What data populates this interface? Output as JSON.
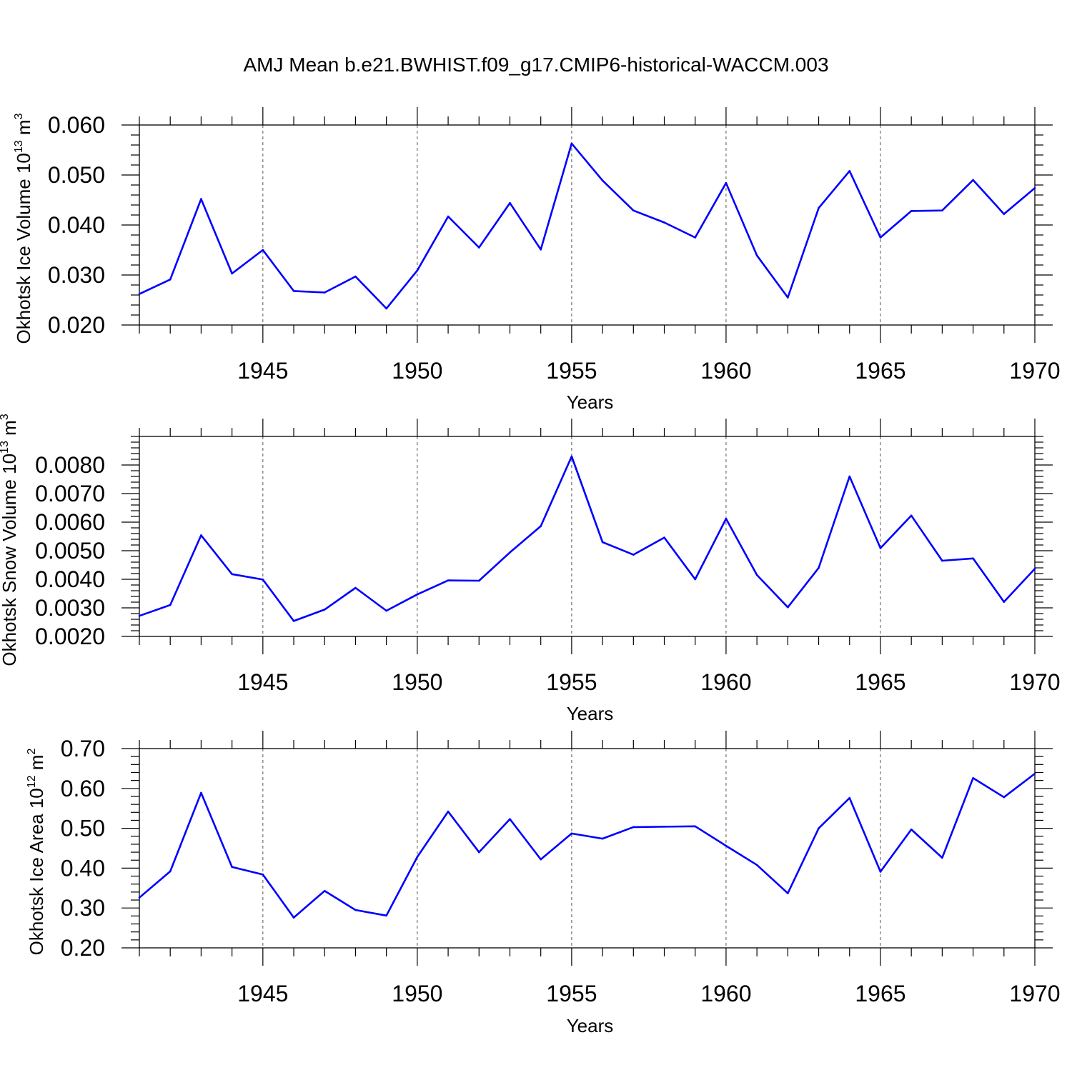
{
  "title": "AMJ Mean b.e21.BWHIST.f09_g17.CMIP6-historical-WACCM.003",
  "colors": {
    "line": "#0000ff",
    "grid": "#555555",
    "axis": "#000000"
  },
  "chart_data": [
    {
      "type": "line",
      "ylabel_main": "Okhotsk Ice Volume 10",
      "ylabel_exp": "13",
      "ylabel_unit": " m",
      "ylabel_unit_exp": "3",
      "xlabel": "Years",
      "xlim": [
        1941,
        1970
      ],
      "ylim": [
        0.02,
        0.06
      ],
      "yticks": [
        0.02,
        0.03,
        0.04,
        0.05,
        0.06
      ],
      "ytick_labels": [
        "0.020",
        "0.030",
        "0.040",
        "0.050",
        "0.060"
      ],
      "xticks": [
        1945,
        1950,
        1955,
        1960,
        1965,
        1970
      ],
      "xtick_labels": [
        "1945",
        "1950",
        "1955",
        "1960",
        "1965",
        "1970"
      ],
      "grid_x": [
        1945,
        1950,
        1955,
        1960,
        1965
      ],
      "x": [
        1941,
        1942,
        1943,
        1944,
        1945,
        1946,
        1947,
        1948,
        1949,
        1950,
        1951,
        1952,
        1953,
        1954,
        1955,
        1956,
        1957,
        1958,
        1959,
        1960,
        1961,
        1962,
        1963,
        1964,
        1965,
        1966,
        1967,
        1968,
        1969,
        1970
      ],
      "series": [
        {
          "name": "Okhotsk Ice Volume",
          "values": [
            0.0262,
            0.0291,
            0.0452,
            0.0303,
            0.035,
            0.0268,
            0.0265,
            0.0297,
            0.0233,
            0.0309,
            0.0417,
            0.0355,
            0.0444,
            0.0351,
            0.0563,
            0.0489,
            0.0429,
            0.0405,
            0.0375,
            0.0484,
            0.0339,
            0.0255,
            0.0434,
            0.0508,
            0.0375,
            0.0428,
            0.0429,
            0.049,
            0.0422,
            0.0474
          ]
        }
      ]
    },
    {
      "type": "line",
      "ylabel_main": "Okhotsk Snow Volume 10",
      "ylabel_exp": "13",
      "ylabel_unit": " m",
      "ylabel_unit_exp": "3",
      "xlabel": "Years",
      "xlim": [
        1941,
        1970
      ],
      "ylim": [
        0.002,
        0.009
      ],
      "yticks": [
        0.002,
        0.003,
        0.004,
        0.005,
        0.006,
        0.007,
        0.008
      ],
      "ytick_labels": [
        "0.0020",
        "0.0030",
        "0.0040",
        "0.0050",
        "0.0060",
        "0.0070",
        "0.0080"
      ],
      "xticks": [
        1945,
        1950,
        1955,
        1960,
        1965,
        1970
      ],
      "xtick_labels": [
        "1945",
        "1950",
        "1955",
        "1960",
        "1965",
        "1970"
      ],
      "grid_x": [
        1945,
        1950,
        1955,
        1960,
        1965
      ],
      "x": [
        1941,
        1942,
        1943,
        1944,
        1945,
        1946,
        1947,
        1948,
        1949,
        1950,
        1951,
        1952,
        1953,
        1954,
        1955,
        1956,
        1957,
        1958,
        1959,
        1960,
        1961,
        1962,
        1963,
        1964,
        1965,
        1966,
        1967,
        1968,
        1969,
        1970
      ],
      "series": [
        {
          "name": "Okhotsk Snow Volume",
          "values": [
            0.00272,
            0.0031,
            0.00554,
            0.00418,
            0.00399,
            0.00254,
            0.00294,
            0.0037,
            0.0029,
            0.00347,
            0.00396,
            0.00395,
            0.00494,
            0.00586,
            0.0083,
            0.0053,
            0.00486,
            0.00546,
            0.004,
            0.00612,
            0.00415,
            0.00302,
            0.0044,
            0.0076,
            0.00509,
            0.00623,
            0.00465,
            0.00473,
            0.00321,
            0.00437
          ]
        }
      ]
    },
    {
      "type": "line",
      "ylabel_main": "Okhotsk Ice Area 10",
      "ylabel_exp": "12",
      "ylabel_unit": " m",
      "ylabel_unit_exp": "2",
      "xlabel": "Years",
      "xlim": [
        1941,
        1970
      ],
      "ylim": [
        0.2,
        0.7
      ],
      "yticks": [
        0.2,
        0.3,
        0.4,
        0.5,
        0.6,
        0.7
      ],
      "ytick_labels": [
        "0.20",
        "0.30",
        "0.40",
        "0.50",
        "0.60",
        "0.70"
      ],
      "xticks": [
        1945,
        1950,
        1955,
        1960,
        1965,
        1970
      ],
      "xtick_labels": [
        "1945",
        "1950",
        "1955",
        "1960",
        "1965",
        "1970"
      ],
      "grid_x": [
        1945,
        1950,
        1955,
        1960,
        1965
      ],
      "x": [
        1941,
        1942,
        1943,
        1944,
        1945,
        1946,
        1947,
        1948,
        1949,
        1950,
        1951,
        1952,
        1953,
        1954,
        1955,
        1956,
        1957,
        1958,
        1959,
        1960,
        1961,
        1962,
        1963,
        1964,
        1965,
        1966,
        1967,
        1968,
        1969,
        1970
      ],
      "series": [
        {
          "name": "Okhotsk Ice Area",
          "values": [
            0.326,
            0.392,
            0.589,
            0.403,
            0.384,
            0.276,
            0.343,
            0.295,
            0.281,
            0.428,
            0.542,
            0.44,
            0.523,
            0.422,
            0.487,
            0.474,
            0.503,
            0.504,
            0.505,
            0.456,
            0.408,
            0.337,
            0.5,
            0.576,
            0.391,
            0.497,
            0.426,
            0.626,
            0.578,
            0.637
          ]
        }
      ]
    }
  ]
}
